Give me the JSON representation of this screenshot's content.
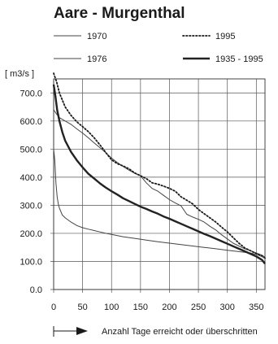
{
  "chart_data": {
    "type": "line",
    "title": "Aare - Murgenthal",
    "ylabel": "[ m3/s ]",
    "xlabel": "Anzahl Tage erreicht oder überschritten",
    "xlim": [
      0,
      365
    ],
    "ylim": [
      0,
      750
    ],
    "x_ticks": [
      "0",
      "50",
      "100",
      "150",
      "200",
      "250",
      "300",
      "350"
    ],
    "y_ticks": [
      "0.0",
      "100.0",
      "200.0",
      "300.0",
      "400.0",
      "500.0",
      "600.0",
      "700.0"
    ],
    "grid": true,
    "legend_position": "top",
    "series": [
      {
        "name": "1970",
        "style": "thin",
        "points": [
          [
            0,
            640
          ],
          [
            5,
            625
          ],
          [
            10,
            612
          ],
          [
            20,
            600
          ],
          [
            30,
            588
          ],
          [
            40,
            572
          ],
          [
            50,
            557
          ],
          [
            60,
            540
          ],
          [
            70,
            522
          ],
          [
            80,
            505
          ],
          [
            90,
            487
          ],
          [
            100,
            468
          ],
          [
            110,
            452
          ],
          [
            120,
            438
          ],
          [
            130,
            425
          ],
          [
            140,
            414
          ],
          [
            150,
            405
          ],
          [
            160,
            380
          ],
          [
            170,
            360
          ],
          [
            180,
            350
          ],
          [
            190,
            335
          ],
          [
            200,
            320
          ],
          [
            210,
            308
          ],
          [
            220,
            298
          ],
          [
            230,
            268
          ],
          [
            240,
            258
          ],
          [
            250,
            250
          ],
          [
            260,
            240
          ],
          [
            270,
            225
          ],
          [
            280,
            212
          ],
          [
            290,
            195
          ],
          [
            300,
            180
          ],
          [
            310,
            165
          ],
          [
            320,
            155
          ],
          [
            330,
            145
          ],
          [
            340,
            138
          ],
          [
            350,
            130
          ],
          [
            360,
            122
          ],
          [
            365,
            115
          ]
        ]
      },
      {
        "name": "1995",
        "style": "dotted",
        "points": [
          [
            0,
            770
          ],
          [
            5,
            740
          ],
          [
            10,
            700
          ],
          [
            20,
            650
          ],
          [
            30,
            620
          ],
          [
            40,
            597
          ],
          [
            50,
            580
          ],
          [
            60,
            562
          ],
          [
            70,
            540
          ],
          [
            80,
            515
          ],
          [
            90,
            488
          ],
          [
            100,
            462
          ],
          [
            110,
            448
          ],
          [
            120,
            440
          ],
          [
            130,
            430
          ],
          [
            140,
            415
          ],
          [
            150,
            405
          ],
          [
            160,
            395
          ],
          [
            170,
            380
          ],
          [
            180,
            375
          ],
          [
            190,
            368
          ],
          [
            200,
            360
          ],
          [
            210,
            350
          ],
          [
            220,
            330
          ],
          [
            230,
            318
          ],
          [
            240,
            305
          ],
          [
            250,
            285
          ],
          [
            260,
            270
          ],
          [
            270,
            255
          ],
          [
            280,
            240
          ],
          [
            290,
            222
          ],
          [
            300,
            205
          ],
          [
            310,
            185
          ],
          [
            320,
            165
          ],
          [
            330,
            148
          ],
          [
            340,
            138
          ],
          [
            350,
            128
          ],
          [
            360,
            120
          ],
          [
            365,
            112
          ]
        ]
      },
      {
        "name": "1976",
        "style": "thin",
        "points": [
          [
            0,
            500
          ],
          [
            2,
            460
          ],
          [
            4,
            380
          ],
          [
            6,
            330
          ],
          [
            8,
            305
          ],
          [
            10,
            290
          ],
          [
            15,
            265
          ],
          [
            20,
            255
          ],
          [
            30,
            240
          ],
          [
            40,
            228
          ],
          [
            50,
            220
          ],
          [
            60,
            215
          ],
          [
            70,
            210
          ],
          [
            80,
            205
          ],
          [
            90,
            200
          ],
          [
            100,
            196
          ],
          [
            120,
            188
          ],
          [
            140,
            182
          ],
          [
            160,
            176
          ],
          [
            180,
            170
          ],
          [
            200,
            165
          ],
          [
            220,
            160
          ],
          [
            240,
            155
          ],
          [
            260,
            150
          ],
          [
            280,
            145
          ],
          [
            300,
            140
          ],
          [
            320,
            135
          ],
          [
            340,
            130
          ],
          [
            350,
            125
          ],
          [
            360,
            117
          ],
          [
            365,
            110
          ]
        ]
      },
      {
        "name": "1935 - 1995",
        "style": "thick",
        "points": [
          [
            0,
            730
          ],
          [
            3,
            690
          ],
          [
            6,
            640
          ],
          [
            10,
            600
          ],
          [
            15,
            560
          ],
          [
            20,
            530
          ],
          [
            30,
            490
          ],
          [
            40,
            460
          ],
          [
            50,
            435
          ],
          [
            60,
            412
          ],
          [
            70,
            395
          ],
          [
            80,
            378
          ],
          [
            90,
            363
          ],
          [
            100,
            350
          ],
          [
            110,
            338
          ],
          [
            120,
            325
          ],
          [
            130,
            315
          ],
          [
            140,
            305
          ],
          [
            150,
            295
          ],
          [
            160,
            287
          ],
          [
            170,
            278
          ],
          [
            180,
            270
          ],
          [
            190,
            260
          ],
          [
            200,
            252
          ],
          [
            210,
            243
          ],
          [
            220,
            234
          ],
          [
            230,
            225
          ],
          [
            240,
            216
          ],
          [
            250,
            207
          ],
          [
            260,
            198
          ],
          [
            270,
            190
          ],
          [
            280,
            181
          ],
          [
            290,
            172
          ],
          [
            300,
            163
          ],
          [
            310,
            154
          ],
          [
            320,
            145
          ],
          [
            330,
            136
          ],
          [
            340,
            127
          ],
          [
            350,
            118
          ],
          [
            360,
            105
          ],
          [
            365,
            92
          ]
        ]
      }
    ]
  }
}
